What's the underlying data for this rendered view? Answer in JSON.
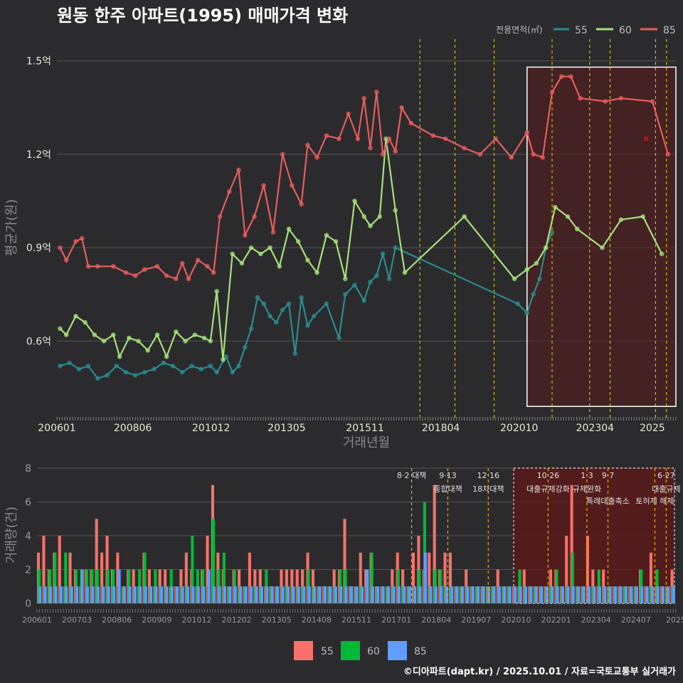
{
  "chart_data": [
    {
      "type": "line",
      "title": "원동 한주 아파트(1995) 매매가격 변화",
      "xlabel": "거래년월",
      "ylabel": "평균가(원)",
      "x_range": [
        2006.0,
        2025.75
      ],
      "ylim": [
        0.37,
        1.57
      ],
      "y_ticks": [
        {
          "v": 0.6,
          "label": "0.6억"
        },
        {
          "v": 0.9,
          "label": "0.9억"
        },
        {
          "v": 1.2,
          "label": "1.2억"
        },
        {
          "v": 1.5,
          "label": "1.5억"
        }
      ],
      "x_ticks": [
        {
          "v": 2006.0,
          "label": "200601"
        },
        {
          "v": 2008.42,
          "label": "200806"
        },
        {
          "v": 2010.92,
          "label": "201012"
        },
        {
          "v": 2013.33,
          "label": "201305"
        },
        {
          "v": 2015.83,
          "label": "201511"
        },
        {
          "v": 2018.25,
          "label": "201804"
        },
        {
          "v": 2020.75,
          "label": "202010"
        },
        {
          "v": 2023.17,
          "label": "202304"
        },
        {
          "v": 2025.0,
          "label": "2025"
        }
      ],
      "legend": {
        "title": "전용면적(㎡)",
        "position": "top-right"
      },
      "series": [
        {
          "name": "55",
          "color": "#2a8c8c",
          "x": [
            2006.1,
            2006.4,
            2006.7,
            2007.0,
            2007.3,
            2007.6,
            2007.9,
            2008.2,
            2008.5,
            2008.8,
            2009.1,
            2009.4,
            2009.7,
            2010.0,
            2010.3,
            2010.6,
            2010.9,
            2011.1,
            2011.4,
            2011.6,
            2011.8,
            2012.0,
            2012.2,
            2012.4,
            2012.6,
            2012.8,
            2013.0,
            2013.2,
            2013.4,
            2013.6,
            2013.8,
            2014.0,
            2014.2,
            2014.6,
            2015.0,
            2015.2,
            2015.5,
            2015.8,
            2016.0,
            2016.2,
            2016.4,
            2016.6,
            2016.8,
            2020.7,
            2021.0,
            2021.2,
            2021.4,
            2021.6,
            2021.8
          ],
          "y": [
            0.52,
            0.53,
            0.51,
            0.52,
            0.48,
            0.49,
            0.52,
            0.5,
            0.49,
            0.5,
            0.51,
            0.53,
            0.52,
            0.5,
            0.52,
            0.51,
            0.52,
            0.5,
            0.55,
            0.5,
            0.52,
            0.58,
            0.64,
            0.74,
            0.72,
            0.68,
            0.66,
            0.7,
            0.72,
            0.56,
            0.74,
            0.65,
            0.68,
            0.72,
            0.61,
            0.75,
            0.78,
            0.73,
            0.79,
            0.81,
            0.88,
            0.8,
            0.9,
            0.72,
            0.69,
            0.75,
            0.8,
            0.9,
            0.95
          ]
        },
        {
          "name": "60",
          "color": "#a6e07a",
          "x": [
            2006.1,
            2006.3,
            2006.6,
            2006.9,
            2007.2,
            2007.5,
            2007.8,
            2008.0,
            2008.3,
            2008.6,
            2008.9,
            2009.2,
            2009.5,
            2009.8,
            2010.1,
            2010.4,
            2010.7,
            2010.9,
            2011.1,
            2011.3,
            2011.6,
            2011.9,
            2012.2,
            2012.5,
            2012.8,
            2013.1,
            2013.4,
            2013.7,
            2014.0,
            2014.3,
            2014.6,
            2014.9,
            2015.2,
            2015.5,
            2015.8,
            2016.0,
            2016.3,
            2016.5,
            2016.8,
            2017.1,
            2019.0,
            2020.6,
            2021.0,
            2021.3,
            2021.6,
            2021.9,
            2022.3,
            2022.6,
            2023.4,
            2024.0,
            2024.7,
            2025.3
          ],
          "y": [
            0.64,
            0.62,
            0.68,
            0.66,
            0.62,
            0.6,
            0.62,
            0.55,
            0.61,
            0.6,
            0.57,
            0.62,
            0.55,
            0.63,
            0.6,
            0.62,
            0.61,
            0.6,
            0.76,
            0.54,
            0.88,
            0.85,
            0.9,
            0.88,
            0.9,
            0.84,
            0.96,
            0.92,
            0.86,
            0.82,
            0.94,
            0.92,
            0.8,
            1.05,
            1.0,
            0.97,
            1.0,
            1.25,
            1.02,
            0.82,
            1.0,
            0.8,
            0.83,
            0.85,
            0.9,
            1.03,
            1.0,
            0.96,
            0.9,
            0.99,
            1.0,
            0.88
          ]
        },
        {
          "name": "85",
          "color": "#e85c5c",
          "x": [
            2006.1,
            2006.3,
            2006.6,
            2006.8,
            2007.0,
            2007.3,
            2007.8,
            2008.2,
            2008.5,
            2008.8,
            2009.2,
            2009.5,
            2009.8,
            2010.0,
            2010.2,
            2010.5,
            2010.8,
            2011.0,
            2011.2,
            2011.5,
            2011.8,
            2012.0,
            2012.3,
            2012.6,
            2012.9,
            2013.2,
            2013.5,
            2013.8,
            2014.0,
            2014.3,
            2014.6,
            2015.0,
            2015.3,
            2015.6,
            2015.8,
            2016.0,
            2016.2,
            2016.4,
            2016.6,
            2016.8,
            2017.0,
            2017.3,
            2018.0,
            2018.4,
            2019.0,
            2019.5,
            2020.0,
            2020.5,
            2021.0,
            2021.2,
            2021.5,
            2021.8,
            2022.1,
            2022.4,
            2022.7,
            2023.5,
            2024.0,
            2025.0,
            2025.5
          ],
          "y": [
            0.9,
            0.86,
            0.92,
            0.93,
            0.84,
            0.84,
            0.84,
            0.82,
            0.81,
            0.83,
            0.84,
            0.81,
            0.8,
            0.85,
            0.8,
            0.86,
            0.84,
            0.82,
            1.0,
            1.08,
            1.15,
            0.94,
            1.0,
            1.1,
            0.95,
            1.2,
            1.1,
            1.04,
            1.23,
            1.19,
            1.26,
            1.25,
            1.33,
            1.25,
            1.38,
            1.22,
            1.4,
            1.2,
            1.25,
            1.21,
            1.35,
            1.3,
            1.26,
            1.25,
            1.22,
            1.2,
            1.25,
            1.19,
            1.27,
            1.2,
            1.19,
            1.4,
            1.45,
            1.45,
            1.38,
            1.37,
            1.38,
            1.37,
            1.2
          ]
        }
      ],
      "marker_x": {
        "x": 2024.8,
        "y": 1.25
      }
    },
    {
      "type": "bar",
      "ylabel": "거래량(건)",
      "ylim": [
        0,
        8
      ],
      "y_ticks": [
        0,
        2,
        4,
        6,
        8
      ],
      "x_ticks": [
        "200601",
        "200703",
        "200806",
        "200909",
        "201012",
        "201202",
        "201305",
        "201408",
        "201511",
        "201701",
        "201804",
        "201907",
        "202010",
        "202201",
        "202304",
        "202407",
        "2025"
      ],
      "series": [
        {
          "name": "55",
          "color": "#f87168"
        },
        {
          "name": "60",
          "color": "#00ba38"
        },
        {
          "name": "85",
          "color": "#619cff"
        }
      ],
      "bars_55": [
        3,
        4,
        2,
        3,
        4,
        1,
        3,
        2,
        1,
        2,
        2,
        5,
        3,
        4,
        2,
        3,
        1,
        2,
        2,
        1,
        3,
        2,
        1,
        2,
        2,
        1,
        1,
        2,
        3,
        2,
        1,
        2,
        4,
        7,
        3,
        2,
        1,
        2,
        2,
        1,
        3,
        2,
        2,
        1,
        1,
        1,
        2,
        2,
        2,
        2,
        2,
        3,
        2,
        1,
        1,
        1,
        2,
        2,
        5,
        1,
        1,
        3,
        2,
        3,
        1,
        1,
        1,
        2,
        3,
        2,
        1,
        3,
        4,
        2,
        3,
        7,
        2,
        3,
        3,
        1,
        1,
        2,
        1,
        1,
        1,
        1,
        1,
        2,
        1,
        1,
        1,
        1,
        2,
        1,
        1,
        1,
        1,
        2,
        2,
        1,
        4,
        7,
        1,
        1,
        4,
        2,
        1,
        2,
        1,
        1,
        1,
        1,
        1,
        1,
        2,
        1,
        3,
        1,
        1,
        1,
        2
      ],
      "bars_60": [
        2,
        1,
        2,
        3,
        1,
        3,
        1,
        2,
        2,
        2,
        2,
        2,
        1,
        2,
        2,
        1,
        1,
        2,
        1,
        2,
        3,
        1,
        2,
        1,
        1,
        2,
        1,
        1,
        1,
        4,
        2,
        2,
        1,
        5,
        2,
        3,
        1,
        2,
        1,
        1,
        1,
        1,
        1,
        2,
        1,
        1,
        1,
        1,
        1,
        1,
        1,
        2,
        1,
        1,
        1,
        1,
        1,
        2,
        2,
        1,
        1,
        1,
        1,
        3,
        1,
        1,
        1,
        1,
        2,
        1,
        1,
        1,
        2,
        6,
        1,
        2,
        2,
        1,
        1,
        1,
        1,
        1,
        1,
        1,
        1,
        1,
        1,
        1,
        1,
        1,
        1,
        2,
        1,
        1,
        1,
        1,
        1,
        1,
        2,
        1,
        1,
        3,
        1,
        1,
        1,
        1,
        2,
        1,
        1,
        1,
        1,
        1,
        1,
        1,
        2,
        1,
        1,
        2,
        1,
        1,
        1
      ],
      "bars_85": [
        1,
        1,
        1,
        1,
        1,
        1,
        1,
        1,
        2,
        1,
        1,
        1,
        1,
        1,
        1,
        2,
        1,
        1,
        1,
        1,
        1,
        1,
        1,
        1,
        1,
        1,
        1,
        1,
        1,
        1,
        1,
        1,
        2,
        1,
        1,
        1,
        1,
        1,
        1,
        1,
        1,
        1,
        1,
        1,
        1,
        1,
        1,
        1,
        1,
        1,
        1,
        1,
        1,
        1,
        1,
        1,
        1,
        1,
        1,
        1,
        1,
        1,
        2,
        1,
        1,
        1,
        1,
        1,
        1,
        1,
        1,
        1,
        1,
        3,
        1,
        1,
        1,
        1,
        1,
        1,
        1,
        1,
        1,
        1,
        1,
        1,
        1,
        1,
        1,
        1,
        1,
        1,
        1,
        1,
        1,
        1,
        1,
        1,
        1,
        1,
        1,
        1,
        1,
        1,
        1,
        1,
        1,
        1,
        1,
        1,
        1,
        1,
        1,
        1,
        1,
        1,
        1,
        1,
        1,
        1,
        1
      ]
    }
  ],
  "events": [
    {
      "label_top": "8·2 대책",
      "label_bottom": "",
      "x": 2017.58
    },
    {
      "label_top": "9·13",
      "label_bottom": "종합대책",
      "x": 2018.7
    },
    {
      "label_top": "12·16",
      "label_bottom": "18차대책",
      "x": 2019.95
    },
    {
      "label_top": "10·26",
      "label_bottom": "대출규제강화",
      "x": 2021.8
    },
    {
      "label_top": "1·3",
      "label_bottom": "규제완화",
      "x": 2023.0
    },
    {
      "label_top": "9·7",
      "label_bottom": "특례대출축소",
      "x": 2023.65
    },
    {
      "label_top": "",
      "label_bottom": "토허제 해제",
      "x": 2025.1
    },
    {
      "label_top": "6·27",
      "label_bottom": "대출규제",
      "x": 2025.45
    }
  ],
  "footer": "©디아파트(dapt.kr) / 2025.10.01 / 자료=국토교통부 실거래가",
  "colors": {
    "bg": "#2b2b2d",
    "grid": "#555555",
    "event_line": "#e6e000",
    "box_fill": "#5a1a1a",
    "l55": "#2a8c8c",
    "l60": "#a6e07a",
    "l85": "#e85c5c"
  }
}
